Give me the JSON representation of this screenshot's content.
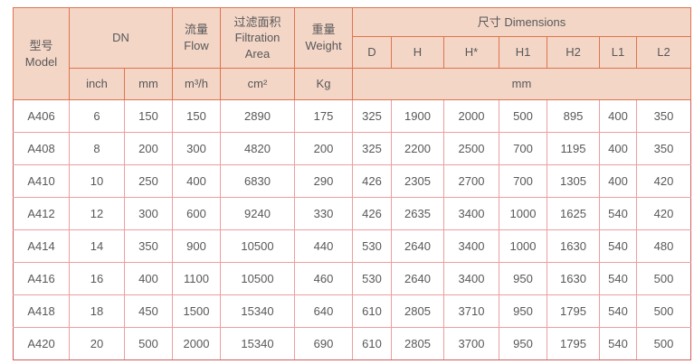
{
  "theme": {
    "header_bg": "#f4d6c6",
    "header_border": "#e0734e",
    "body_grid_border": "#ee9e9e",
    "body_outer_border": "#d05c5c",
    "text_color": "#57585a",
    "page_bg": "#ffffff"
  },
  "table": {
    "header": {
      "model": "型号\nModel",
      "dn": "DN",
      "flow": "流量\nFlow",
      "filtration_area": "过滤面积\nFiltration\nArea",
      "weight": "重量\nWeight",
      "dimensions": "尺寸 Dimensions",
      "dim_cols": [
        "D",
        "H",
        "H*",
        "H1",
        "H2",
        "L1",
        "L2"
      ],
      "units": {
        "inch": "inch",
        "mm": "mm",
        "flow": "m³/h",
        "area": "cm²",
        "weight": "Kg",
        "dims": "mm"
      }
    },
    "rows": [
      [
        "A406",
        6,
        150,
        150,
        2890,
        175,
        325,
        1900,
        2000,
        500,
        895,
        400,
        350
      ],
      [
        "A408",
        8,
        200,
        300,
        4820,
        200,
        325,
        2200,
        2500,
        700,
        1195,
        400,
        350
      ],
      [
        "A410",
        10,
        250,
        400,
        6830,
        290,
        426,
        2305,
        2700,
        700,
        1305,
        400,
        420
      ],
      [
        "A412",
        12,
        300,
        600,
        9240,
        330,
        426,
        2635,
        3400,
        1000,
        1625,
        540,
        420
      ],
      [
        "A414",
        14,
        350,
        900,
        10500,
        440,
        530,
        2640,
        3400,
        1000,
        1630,
        540,
        480
      ],
      [
        "A416",
        16,
        400,
        1100,
        10500,
        460,
        530,
        2640,
        3400,
        950,
        1630,
        540,
        500
      ],
      [
        "A418",
        18,
        450,
        1500,
        15340,
        640,
        610,
        2805,
        3710,
        950,
        1795,
        540,
        500
      ],
      [
        "A420",
        20,
        500,
        2000,
        15340,
        690,
        610,
        2805,
        3700,
        950,
        1795,
        540,
        500
      ]
    ]
  }
}
